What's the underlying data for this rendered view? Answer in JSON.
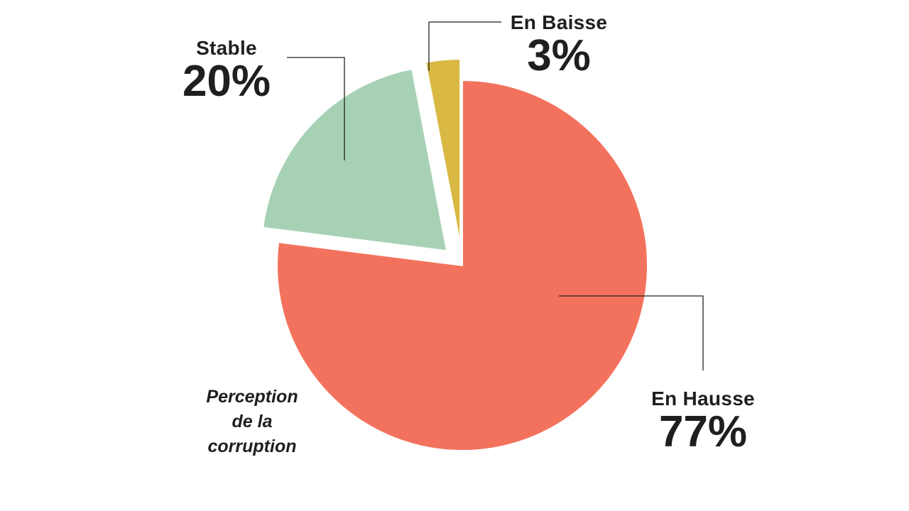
{
  "chart_data": {
    "type": "pie",
    "title_lines": [
      "Perception",
      "de la",
      "corruption"
    ],
    "slices": [
      {
        "name": "En Hausse",
        "value": 77,
        "display": "77%",
        "color": "#f3725d"
      },
      {
        "name": "Stable",
        "value": 20,
        "display": "20%",
        "color": "#a7d1b4"
      },
      {
        "name": "En Baisse",
        "value": 3,
        "display": "3%",
        "color": "#d9b944"
      }
    ],
    "exploded": [
      "Stable",
      "En Baisse"
    ]
  }
}
